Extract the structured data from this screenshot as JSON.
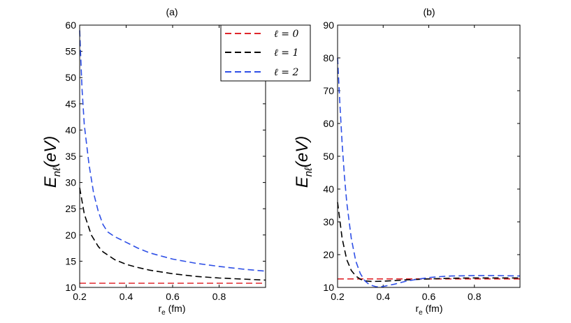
{
  "chart_data": [
    {
      "type": "line",
      "title": "(a)",
      "ylabel": {
        "main": "E",
        "sub": "nℓ",
        "unit": "(eV)"
      },
      "xlabel": {
        "main": "r",
        "sub": "e",
        "unit": " (fm)"
      },
      "xlim": [
        0.2,
        1.0
      ],
      "ylim": [
        10,
        60
      ],
      "xticks": [
        0.2,
        0.4,
        0.6,
        0.8
      ],
      "xtick_labels": [
        "0.2",
        "0.4",
        "0.6",
        "0.8"
      ],
      "yticks": [
        10,
        15,
        20,
        25,
        30,
        35,
        40,
        45,
        50,
        55,
        60
      ],
      "ytick_labels": [
        "10",
        "15",
        "20",
        "25",
        "30",
        "35",
        "40",
        "45",
        "50",
        "55",
        "60"
      ],
      "legend": {
        "position": "top-right",
        "entries": [
          {
            "label": "ℓ = 0",
            "color": "#e0262b"
          },
          {
            "label": "ℓ = 1",
            "color": "#000000"
          },
          {
            "label": "ℓ = 2",
            "color": "#2e4fe6"
          }
        ]
      },
      "series": [
        {
          "name": "ℓ = 0",
          "color": "#e0262b",
          "x": [
            0.2,
            0.4,
            0.6,
            0.8,
            1.0
          ],
          "y": [
            10.8,
            10.8,
            10.8,
            10.8,
            10.8
          ]
        },
        {
          "name": "ℓ = 1",
          "color": "#000000",
          "x": [
            0.2,
            0.22,
            0.25,
            0.28,
            0.3,
            0.35,
            0.4,
            0.45,
            0.5,
            0.6,
            0.7,
            0.8,
            0.9,
            1.0
          ],
          "y": [
            29.0,
            24.0,
            20.0,
            17.8,
            16.8,
            15.3,
            14.4,
            13.8,
            13.3,
            12.6,
            12.1,
            11.8,
            11.6,
            11.4
          ]
        },
        {
          "name": "ℓ = 2",
          "color": "#2e4fe6",
          "x": [
            0.2,
            0.21,
            0.22,
            0.24,
            0.26,
            0.28,
            0.3,
            0.32,
            0.35,
            0.4,
            0.45,
            0.5,
            0.6,
            0.7,
            0.8,
            0.9,
            1.0
          ],
          "y": [
            59.0,
            48.0,
            41.0,
            33.5,
            28.0,
            24.5,
            22.0,
            20.6,
            19.7,
            18.6,
            17.5,
            16.6,
            15.4,
            14.6,
            14.0,
            13.5,
            13.1
          ]
        }
      ]
    },
    {
      "type": "line",
      "title": "(b)",
      "ylabel": {
        "main": "E",
        "sub": "nℓ",
        "unit": "(eV)"
      },
      "xlabel": {
        "main": "r",
        "sub": "e",
        "unit": " (fm)"
      },
      "xlim": [
        0.2,
        1.0
      ],
      "ylim": [
        10,
        90
      ],
      "xticks": [
        0.2,
        0.4,
        0.6,
        0.8
      ],
      "xtick_labels": [
        "0.2",
        "0.4",
        "0.6",
        "0.8"
      ],
      "yticks": [
        10,
        20,
        30,
        40,
        50,
        60,
        70,
        80,
        90
      ],
      "ytick_labels": [
        "10",
        "20",
        "30",
        "40",
        "50",
        "60",
        "70",
        "80",
        "90"
      ],
      "series": [
        {
          "name": "ℓ = 0",
          "color": "#e0262b",
          "x": [
            0.2,
            0.4,
            0.6,
            0.8,
            1.0
          ],
          "y": [
            12.6,
            12.6,
            12.6,
            12.6,
            12.6
          ]
        },
        {
          "name": "ℓ = 1",
          "color": "#000000",
          "x": [
            0.2,
            0.22,
            0.24,
            0.26,
            0.28,
            0.3,
            0.32,
            0.35,
            0.4,
            0.5,
            0.6,
            0.7,
            0.8,
            0.9,
            1.0
          ],
          "y": [
            36.0,
            25.0,
            18.5,
            15.2,
            13.5,
            12.5,
            12.0,
            11.8,
            11.9,
            12.3,
            12.6,
            12.8,
            12.9,
            12.9,
            12.9
          ]
        },
        {
          "name": "ℓ = 2",
          "color": "#2e4fe6",
          "x": [
            0.2,
            0.21,
            0.22,
            0.23,
            0.24,
            0.26,
            0.28,
            0.3,
            0.32,
            0.34,
            0.37,
            0.4,
            0.45,
            0.5,
            0.55,
            0.6,
            0.65,
            0.7,
            0.8,
            0.9,
            1.0
          ],
          "y": [
            80.0,
            66.0,
            54.0,
            44.0,
            36.0,
            25.0,
            18.0,
            14.2,
            12.0,
            10.8,
            10.2,
            10.3,
            11.0,
            11.9,
            12.5,
            13.0,
            13.3,
            13.5,
            13.6,
            13.6,
            13.5
          ]
        }
      ]
    }
  ]
}
